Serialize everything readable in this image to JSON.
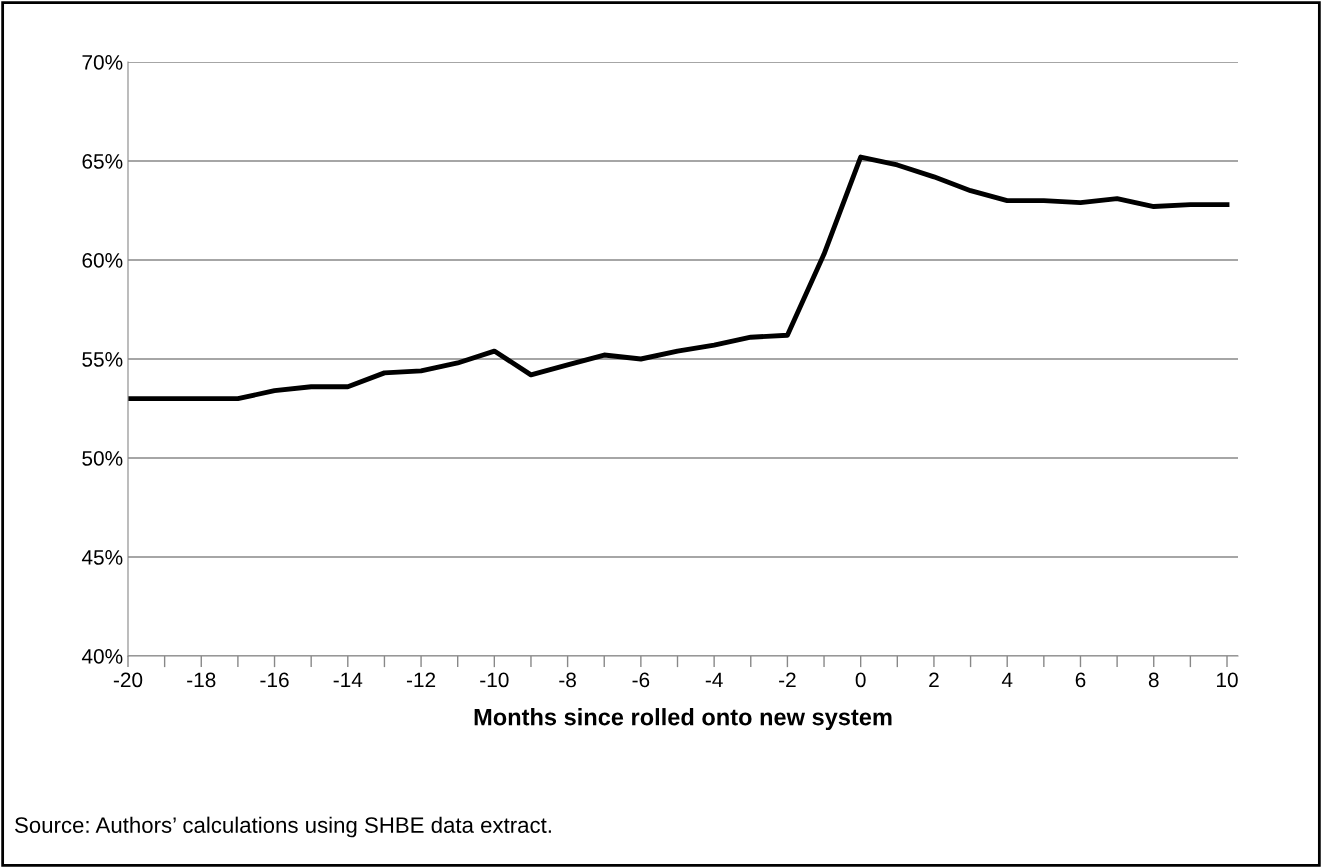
{
  "chart_data": {
    "type": "line",
    "xlabel": "Months since rolled onto new system",
    "x": [
      -20,
      -19,
      -18,
      -17,
      -16,
      -15,
      -14,
      -13,
      -12,
      -11,
      -10,
      -9,
      -8,
      -7,
      -6,
      -5,
      -4,
      -3,
      -2,
      -1,
      0,
      1,
      2,
      3,
      4,
      5,
      6,
      7,
      8,
      9,
      10
    ],
    "series": [
      {
        "color": "#000000",
        "values": [
          53.0,
          53.0,
          53.0,
          53.0,
          53.4,
          53.6,
          53.6,
          54.3,
          54.4,
          54.8,
          55.4,
          54.2,
          54.7,
          55.2,
          55.0,
          55.4,
          55.7,
          56.1,
          56.2,
          60.3,
          65.2,
          64.8,
          64.2,
          63.5,
          63.0,
          63.0,
          62.9,
          63.1,
          62.7,
          62.8,
          62.8
        ]
      }
    ],
    "xlim": [
      -20,
      10.3
    ],
    "xticks": [
      -20,
      {
        "value": -19,
        "label": null
      },
      -18,
      {
        "value": -17,
        "label": null
      },
      -16,
      {
        "value": -15,
        "label": null
      },
      -14,
      {
        "value": -13,
        "label": null
      },
      -12,
      {
        "value": -11,
        "label": null
      },
      -10,
      {
        "value": -9,
        "label": null
      },
      -8,
      {
        "value": -7,
        "label": null
      },
      -6,
      {
        "value": -5,
        "label": null
      },
      -4,
      {
        "value": -3,
        "label": null
      },
      -2,
      {
        "value": -1,
        "label": null
      },
      0,
      {
        "value": 1,
        "label": null
      },
      2,
      {
        "value": 3,
        "label": null
      },
      4,
      {
        "value": 5,
        "label": null
      },
      6,
      {
        "value": 7,
        "label": null
      },
      8,
      {
        "value": 9,
        "label": null
      },
      10
    ],
    "ylim": [
      40,
      70
    ],
    "yticks": [
      {
        "value": 40,
        "label": "40%"
      },
      {
        "value": 45,
        "label": "45%"
      },
      {
        "value": 50,
        "label": "50%"
      },
      {
        "value": 55,
        "label": "55%"
      },
      {
        "value": 60,
        "label": "60%"
      },
      {
        "value": 65,
        "label": "65%"
      },
      {
        "value": 70,
        "label": "70%"
      }
    ],
    "grid": "y",
    "marker": "none",
    "line_style": "solid",
    "annotations": [
      "Source: Authors’ calculations using SHBE data extract."
    ]
  }
}
